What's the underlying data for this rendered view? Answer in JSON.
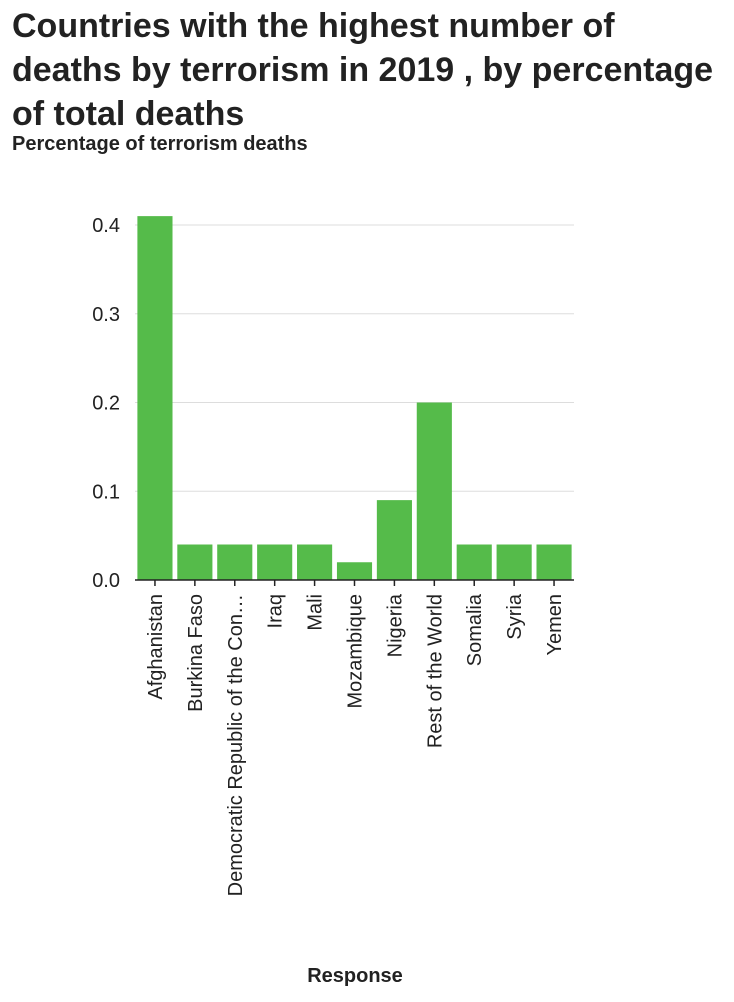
{
  "chart_data": {
    "type": "bar",
    "title": "Countries with the highest number of deaths by terrorism in 2019 , by percentage of total deaths",
    "ylabel": "Percentage of terrorism deaths",
    "xlabel": "Response",
    "categories": [
      "Afghanistan",
      "Burkina Faso",
      "Democratic Republic of the Con…",
      "Iraq",
      "Mali",
      "Mozambique",
      "Nigeria",
      "Rest of the World",
      "Somalia",
      "Syria",
      "Yemen"
    ],
    "values": [
      0.41,
      0.04,
      0.04,
      0.04,
      0.04,
      0.02,
      0.09,
      0.2,
      0.04,
      0.04,
      0.04
    ],
    "ylim": [
      0,
      0.4
    ],
    "yticks": [
      "0.0",
      "0.1",
      "0.2",
      "0.3",
      "0.4"
    ],
    "grid": true,
    "bar_color": "#55bb4a",
    "grid_color": "#dddddd"
  }
}
